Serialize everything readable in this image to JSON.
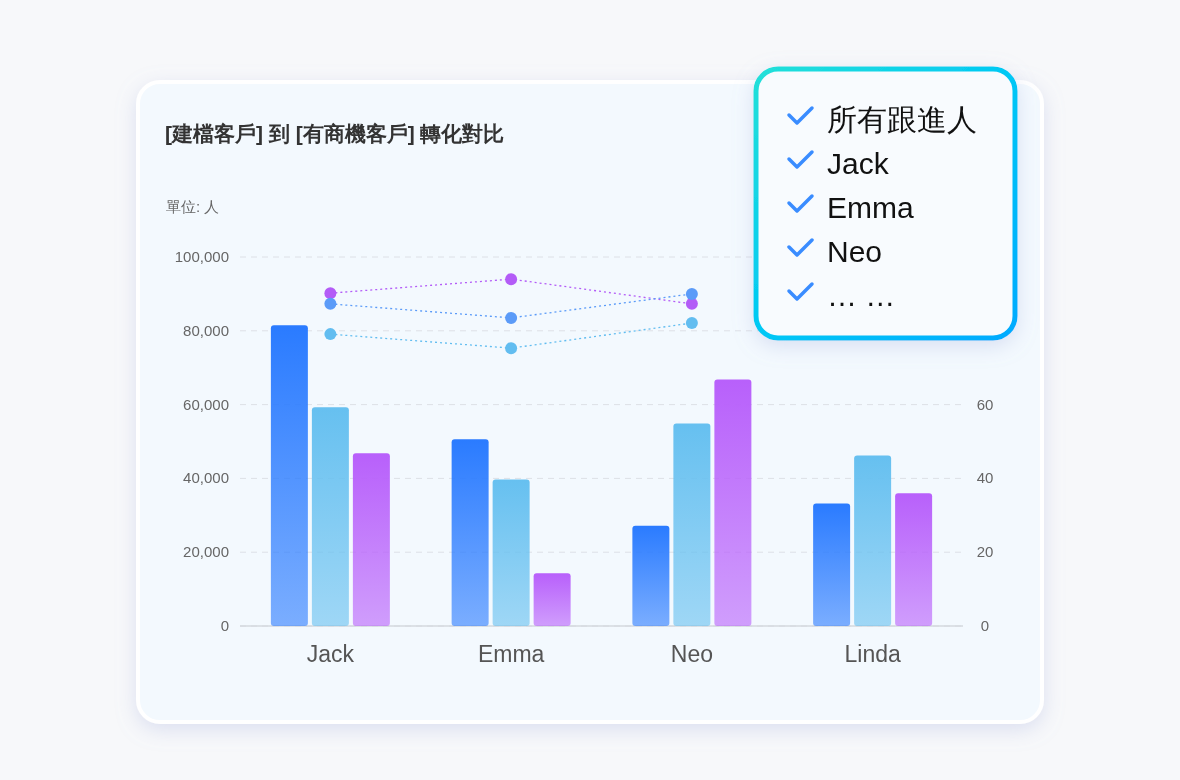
{
  "chart_data": {
    "type": "bar",
    "title": "[建檔客戶] 到 [有商機客戶] 轉化對比",
    "ylabel": "單位: 人",
    "categories": [
      "Jack",
      "Emma",
      "Neo",
      "Linda"
    ],
    "series": [
      {
        "color": "#2a7bff",
        "values": [
          81500,
          50600,
          27200,
          33200
        ]
      },
      {
        "color": "#66c0f0",
        "values": [
          59300,
          39700,
          54900,
          46200
        ]
      },
      {
        "color": "#b860fb",
        "values": [
          46800,
          14300,
          66800,
          36000
        ]
      },
      {
        "type": "line",
        "axis": "y2",
        "color": "#b35cf7",
        "values": [
          90.2,
          94.0,
          87.3,
          null
        ]
      },
      {
        "type": "line",
        "axis": "y2",
        "color": "#5b9bf8",
        "values": [
          87.3,
          83.5,
          90.0,
          null
        ]
      },
      {
        "type": "line",
        "axis": "y2",
        "color": "#62bdf0",
        "values": [
          79.1,
          75.3,
          82.1,
          null
        ]
      }
    ],
    "ylim": [
      0,
      100000
    ],
    "yticks": [
      {
        "value": 0,
        "label": "0"
      },
      {
        "value": 20000,
        "label": "20,000"
      },
      {
        "value": 40000,
        "label": "40,000"
      },
      {
        "value": 60000,
        "label": "60,000"
      },
      {
        "value": 80000,
        "label": "80,000"
      },
      {
        "value": 100000,
        "label": "100,000"
      }
    ],
    "y2lim": [
      0,
      100
    ],
    "y2ticks": [
      0,
      20,
      40,
      60
    ],
    "grid": "y",
    "marker": "circle",
    "line_style": "dotted",
    "annotations": [
      "所有跟進人",
      "Jack",
      "Emma",
      "Neo",
      "… …"
    ]
  }
}
